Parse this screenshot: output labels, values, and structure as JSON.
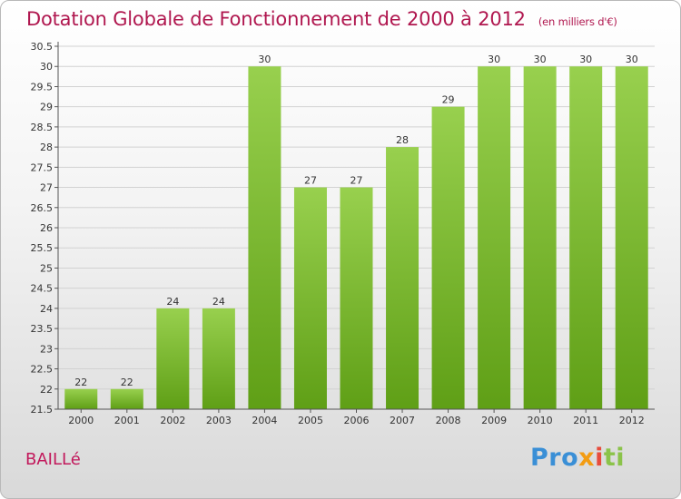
{
  "title": "Dotation Globale de Fonctionnement de 2000 à 2012",
  "subtitle": "(en milliers d'€)",
  "commune": "BAILLé",
  "logo": {
    "p1": "Pro",
    "p2": "x",
    "p3": "i",
    "p4": "ti"
  },
  "colors": {
    "bar_top": "#98d04e",
    "bar_bottom": "#5f9f16",
    "title": "#b0174f"
  },
  "chart_data": {
    "type": "bar",
    "categories": [
      "2000",
      "2001",
      "2002",
      "2003",
      "2004",
      "2005",
      "2006",
      "2007",
      "2008",
      "2009",
      "2010",
      "2011",
      "2012"
    ],
    "values": [
      22,
      22,
      24,
      24,
      30,
      27,
      27,
      28,
      29,
      30,
      30,
      30,
      30
    ],
    "ylim": [
      21.5,
      30.5
    ],
    "yticks": [
      "21.5",
      "22",
      "22.5",
      "23",
      "23.5",
      "24",
      "24.5",
      "25",
      "25.5",
      "26",
      "26.5",
      "27",
      "27.5",
      "28",
      "28.5",
      "29",
      "29.5",
      "30",
      "30.5"
    ],
    "grid": true,
    "xlabel": "",
    "ylabel": ""
  }
}
